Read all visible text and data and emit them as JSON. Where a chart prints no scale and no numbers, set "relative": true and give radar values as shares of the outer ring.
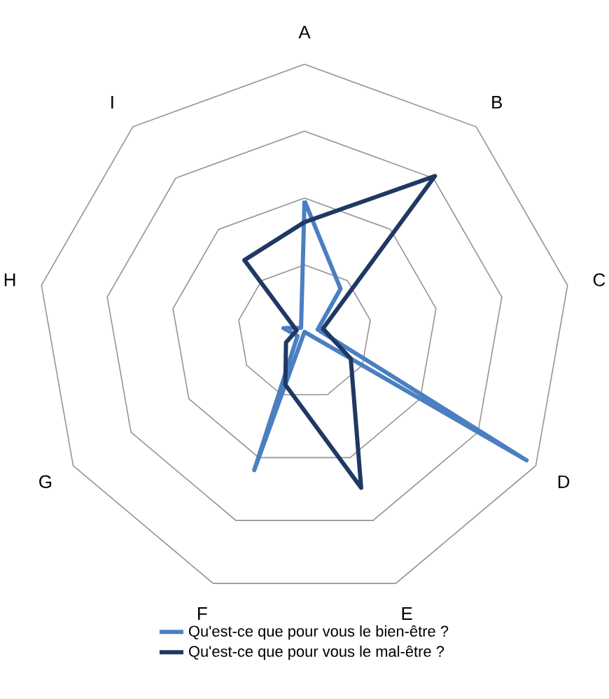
{
  "chart_data": {
    "type": "radar",
    "relative": true,
    "grid": true,
    "legend": "bottom",
    "marker": "none",
    "categories": [
      "A",
      "B",
      "C",
      "D",
      "E",
      "F",
      "G",
      "H",
      "I"
    ],
    "series": [
      {
        "name": "Qu'est-ce que pour vous le bien-être ?",
        "color": "#4a7fc1",
        "values": [
          0.49,
          0.21,
          0.05,
          0.96,
          0.0,
          0.55,
          0.03,
          0.08,
          0.02
        ]
      },
      {
        "name": "Qu'est-ce que pour vous le mal-être ?",
        "color": "#1f3864",
        "values": [
          0.41,
          0.76,
          0.07,
          0.2,
          0.62,
          0.21,
          0.08,
          0.03,
          0.35
        ]
      }
    ]
  }
}
